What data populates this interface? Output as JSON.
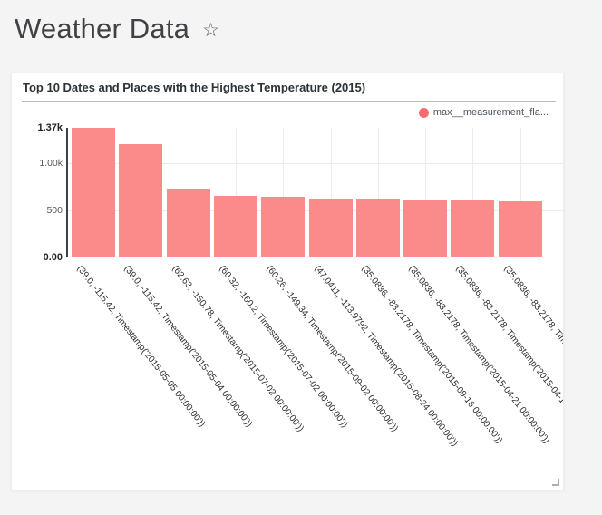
{
  "header": {
    "title": "Weather Data",
    "star_icon": "☆"
  },
  "card": {
    "title": "Top 10 Dates and Places with the Highest Temperature (2015)",
    "legend": {
      "label": "max__measurement_fla...",
      "color": "#fb6a6e"
    }
  },
  "chart_data": {
    "type": "bar",
    "title": "Top 10 Dates and Places with the Highest Temperature (2015)",
    "legend_position": "top-right",
    "grid": true,
    "bar_color": "#fb8a8a",
    "ylim": [
      0,
      1370
    ],
    "yticks": [
      {
        "label": "1.37k",
        "value": 1370,
        "bold": true
      },
      {
        "label": "1.00k",
        "value": 1000,
        "bold": false
      },
      {
        "label": "500",
        "value": 500,
        "bold": false
      },
      {
        "label": "0.00",
        "value": 0,
        "bold": true
      }
    ],
    "x_label_rotation_deg": 52,
    "categories": [
      "(39.0, -115.42, Timestamp('2015-05-05 00:00:00'))",
      "(39.0, -115.42, Timestamp('2015-05-04 00:00:00'))",
      "(62.63, -150.78, Timestamp('2015-07-02 00:00:00'))",
      "(60.32, -160.2, Timestamp('2015-07-02 00:00:00'))",
      "(60.26, -149.34, Timestamp('2015-09-02 00:00:00'))",
      "(47.0411, -113.9792, Timestamp('2015-08-24 00:00:00'))",
      "(35.0836, -83.2178, Timestamp('2015-09-16 00:00:00'))",
      "(35.0836, -83.2178, Timestamp('2015-04-21 00:00:00'))",
      "(35.0836, -83.2178, Timestamp('2015-04-1",
      "(35.0836, -83.2178, Time"
    ],
    "series": [
      {
        "name": "max__measurement_fla...",
        "values": [
          1370,
          1200,
          730,
          655,
          640,
          617,
          612,
          608,
          605,
          598
        ]
      }
    ]
  }
}
